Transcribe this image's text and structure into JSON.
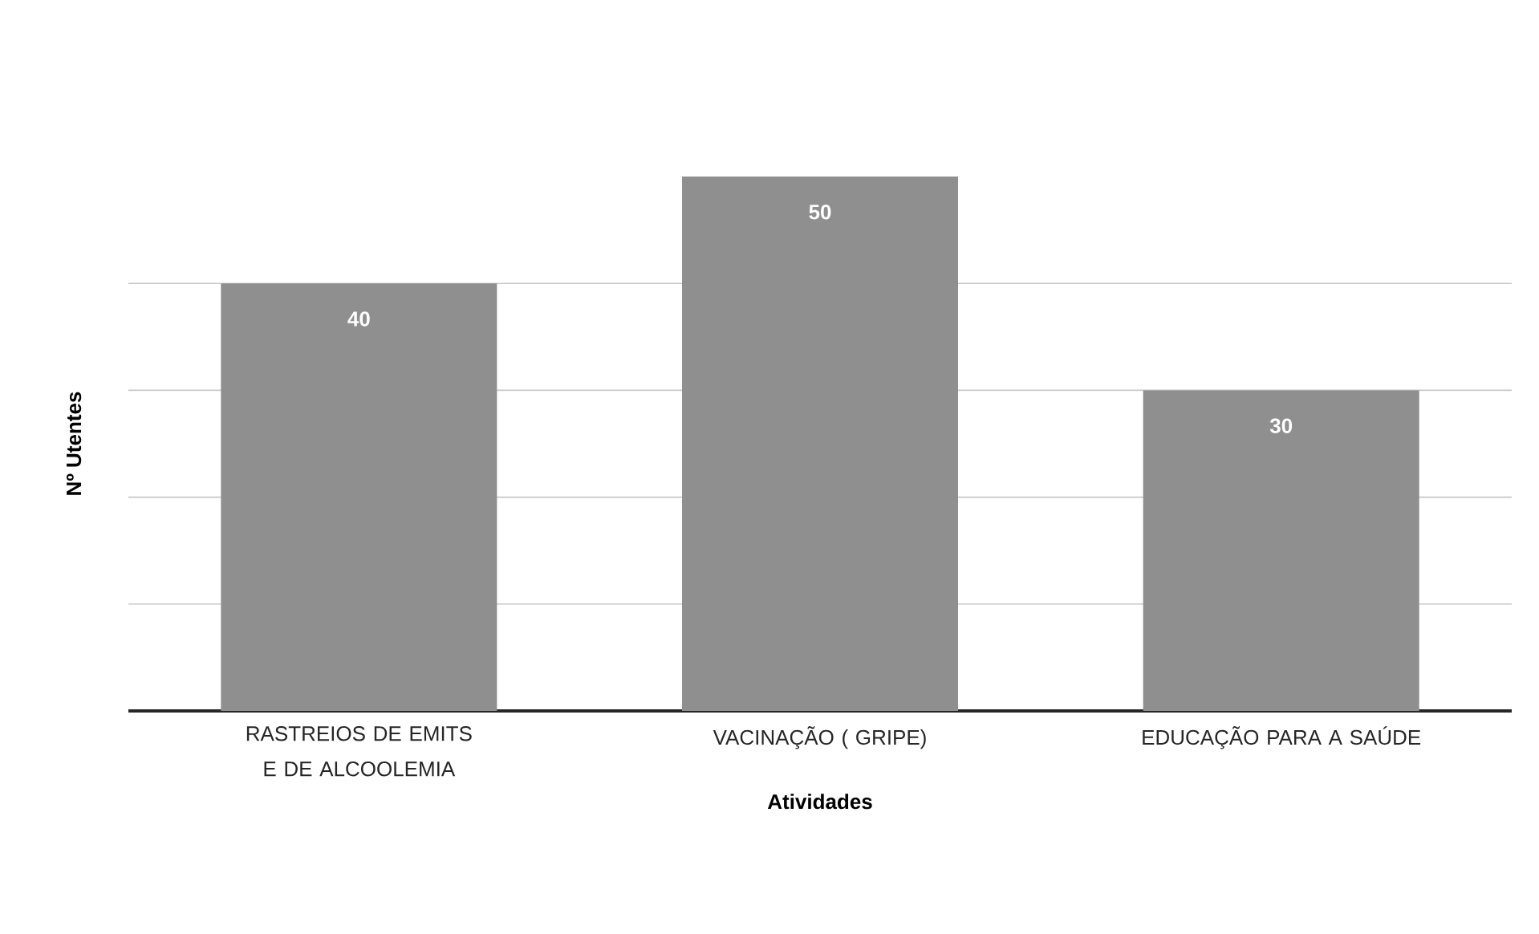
{
  "chart_data": {
    "type": "bar",
    "xlabel": "Atividades",
    "ylabel": "Nº Utentes",
    "categories": [
      "RASTREIOS DE EMITS E DE ALCOOLEMIA",
      "VACINAÇÃO  ( GRIPE)",
      "EDUCAÇÃO PARA A SAÚDE"
    ],
    "values": [
      40,
      50,
      30
    ],
    "color": "#8f8f8f",
    "ylim": [
      0,
      50
    ],
    "yticks": [
      {
        "value": 10,
        "label": null
      },
      {
        "value": 20,
        "label": null
      },
      {
        "value": 30,
        "label": null
      },
      {
        "value": 40,
        "label": null
      }
    ],
    "tick_labels": "x",
    "grid": "y",
    "data_labels": true
  }
}
